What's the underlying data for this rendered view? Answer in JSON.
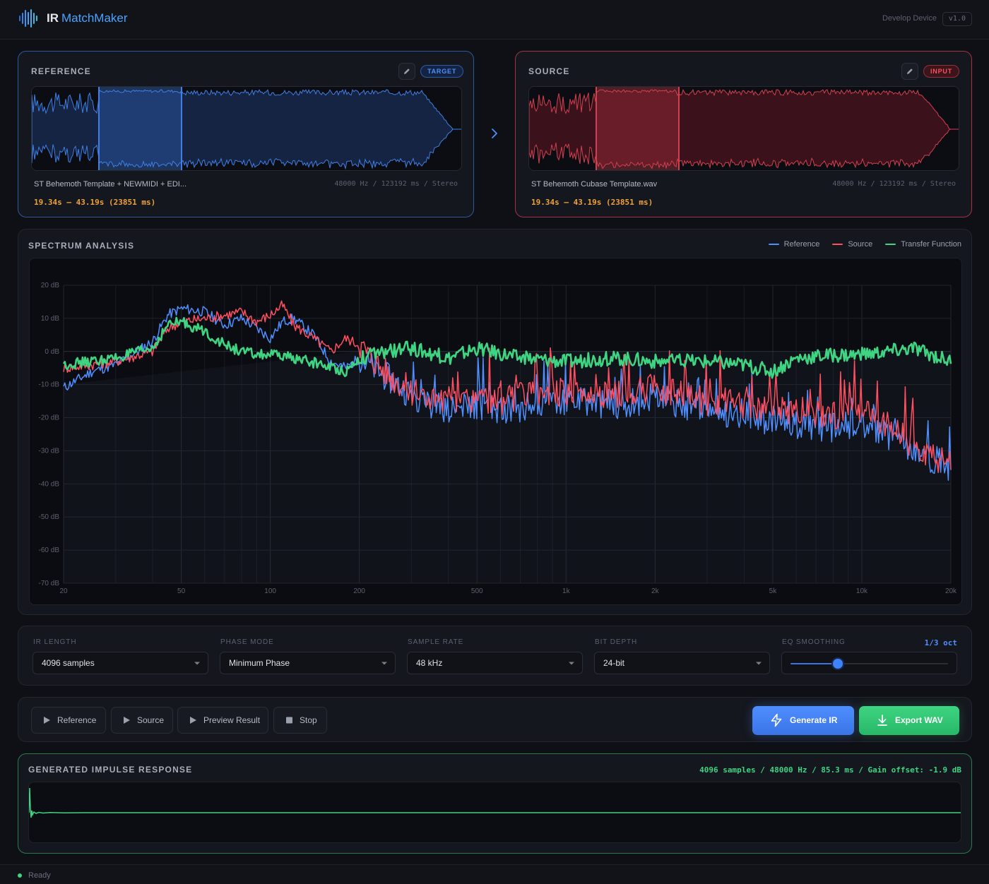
{
  "header": {
    "logo_ir": "IR",
    "logo_name": "MatchMaker",
    "device": "Develop Device",
    "version": "v1.0"
  },
  "reference": {
    "title": "REFERENCE",
    "badge": "TARGET",
    "file_name": "ST Behemoth Template + NEWMIDI + EDI...",
    "meta": "48000 Hz / 123192 ms / Stereo",
    "range": "19.34s – 43.19s (23851 ms)"
  },
  "source": {
    "title": "SOURCE",
    "badge": "INPUT",
    "file_name": "ST Behemoth Cubase Template.wav",
    "meta": "48000 Hz / 123192 ms / Stereo",
    "range": "19.34s – 43.19s (23851 ms)"
  },
  "spectrum": {
    "title": "SPECTRUM ANALYSIS",
    "legend": [
      {
        "label": "Reference",
        "color": "#4f8fff"
      },
      {
        "label": "Source",
        "color": "#ff4f60"
      },
      {
        "label": "Transfer Function",
        "color": "#3ed482"
      }
    ]
  },
  "chart_data": {
    "type": "line",
    "xscale": "log",
    "xlim": [
      20,
      20000
    ],
    "ylim": [
      -70,
      20
    ],
    "y_ticks": [
      "20 dB",
      "10 dB",
      "0 dB",
      "-10 dB",
      "-20 dB",
      "-30 dB",
      "-40 dB",
      "-50 dB",
      "-60 dB",
      "-70 dB"
    ],
    "y_tick_values": [
      20,
      10,
      0,
      -10,
      -20,
      -30,
      -40,
      -50,
      -60,
      -70
    ],
    "x_ticks": [
      "20",
      "50",
      "100",
      "200",
      "500",
      "1k",
      "2k",
      "5k",
      "10k",
      "20k"
    ],
    "x_tick_values": [
      20,
      50,
      100,
      200,
      500,
      1000,
      2000,
      5000,
      10000,
      20000
    ],
    "series": [
      {
        "name": "Reference",
        "color": "#4f8fff",
        "x": [
          20,
          25,
          30,
          40,
          45,
          50,
          60,
          70,
          80,
          90,
          100,
          110,
          120,
          140,
          160,
          180,
          200,
          250,
          300,
          400,
          500,
          600,
          800,
          1000,
          1500,
          2000,
          3000,
          4000,
          5000,
          6000,
          8000,
          10000,
          12000,
          15000,
          18000,
          20000
        ],
        "y": [
          -11,
          -6,
          -4,
          3,
          11,
          13,
          12,
          8,
          10,
          7,
          4,
          9,
          10,
          5,
          -3,
          -5,
          -2,
          -8,
          -13,
          -18,
          -16,
          -18,
          -16,
          -15,
          -16,
          -14,
          -18,
          -19,
          -21,
          -22,
          -23,
          -22,
          -25,
          -30,
          -33,
          -36
        ]
      },
      {
        "name": "Source",
        "color": "#ff4f60",
        "x": [
          20,
          25,
          30,
          40,
          45,
          50,
          60,
          70,
          80,
          90,
          100,
          110,
          120,
          140,
          160,
          180,
          200,
          250,
          300,
          400,
          500,
          600,
          800,
          1000,
          1500,
          2000,
          3000,
          4000,
          5000,
          6000,
          8000,
          10000,
          12000,
          15000,
          18000,
          20000
        ],
        "y": [
          -5,
          -4,
          -3,
          0,
          7,
          9,
          10,
          11,
          12,
          9,
          11,
          14,
          8,
          4,
          0,
          4,
          2,
          -7,
          -12,
          -16,
          -14,
          -15,
          -13,
          -12,
          -13,
          -11,
          -15,
          -16,
          -17,
          -18,
          -19,
          -18,
          -22,
          -28,
          -32,
          -36
        ]
      },
      {
        "name": "Transfer Function",
        "color": "#3ed482",
        "x": [
          20,
          25,
          30,
          40,
          45,
          50,
          60,
          70,
          80,
          90,
          100,
          120,
          150,
          180,
          200,
          250,
          300,
          400,
          500,
          700,
          1000,
          1500,
          2000,
          3000,
          4000,
          5000,
          6000,
          8000,
          10000,
          15000,
          20000
        ],
        "y": [
          -4,
          -3,
          -2,
          1,
          8,
          9,
          6,
          2,
          0,
          -1,
          -1,
          -2,
          -4,
          -6,
          -2,
          0,
          1,
          -2,
          1,
          -2,
          -3,
          -2,
          -3,
          -3,
          -4,
          -6,
          -2,
          -1,
          -1,
          1,
          -3
        ]
      }
    ]
  },
  "settings": {
    "ir_length": {
      "label": "IR LENGTH",
      "value": "4096 samples"
    },
    "phase_mode": {
      "label": "PHASE MODE",
      "value": "Minimum Phase"
    },
    "sample_rate": {
      "label": "SAMPLE RATE",
      "value": "48 kHz"
    },
    "bit_depth": {
      "label": "BIT DEPTH",
      "value": "24-bit"
    },
    "eq_smoothing": {
      "label": "EQ SMOOTHING",
      "value": "1/3 oct",
      "level": 0.3
    }
  },
  "transport": {
    "reference": "Reference",
    "source": "Source",
    "preview": "Preview Result",
    "stop": "Stop",
    "generate": "Generate IR",
    "export": "Export WAV"
  },
  "ir": {
    "title": "GENERATED IMPULSE RESPONSE",
    "meta": "4096 samples / 48000 Hz / 85.3 ms / Gain offset: -1.9 dB"
  },
  "status": {
    "text": "Ready"
  }
}
